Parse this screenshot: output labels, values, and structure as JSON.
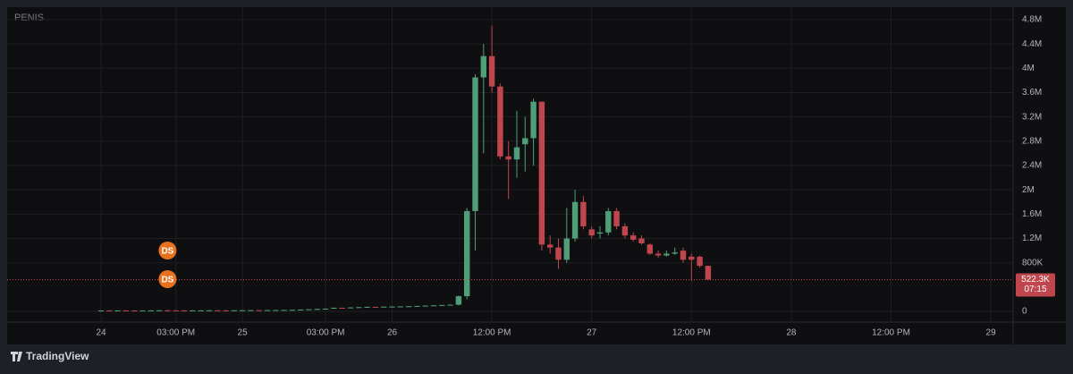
{
  "chart_data": {
    "type": "candlestick",
    "title": "PENIS",
    "categories": [
      "24",
      null,
      null,
      null,
      null,
      null,
      null,
      null,
      null,
      "03:00 PM",
      null,
      null,
      null,
      null,
      null,
      null,
      null,
      "25",
      null,
      null,
      null,
      null,
      null,
      null,
      null,
      null,
      null,
      "03:00 PM",
      null,
      null,
      null,
      null,
      null,
      null,
      null,
      "26",
      null,
      null,
      null,
      null,
      null,
      null,
      null,
      null,
      null,
      null,
      null,
      "12:00 PM",
      null,
      null,
      null,
      null,
      null,
      null,
      null,
      null,
      null,
      null,
      null,
      "27",
      null,
      null,
      null,
      null,
      null,
      null,
      null,
      null,
      null,
      null,
      null,
      "12:00 PM",
      null,
      null,
      null,
      null,
      null,
      null,
      null,
      null,
      null,
      null,
      null,
      "28",
      null,
      null,
      null,
      null,
      null,
      null,
      null,
      null,
      null,
      null,
      null,
      "12:00 PM",
      null,
      null,
      null,
      null,
      null,
      null,
      null,
      null,
      null,
      null,
      null,
      "29",
      null,
      null
    ],
    "open": [
      14000,
      15000,
      14000,
      16000,
      15000,
      13000,
      14000,
      16000,
      18000,
      17000,
      16000,
      15000,
      16000,
      17000,
      18000,
      17000,
      16000,
      18000,
      19000,
      20000,
      19000,
      21000,
      22000,
      24000,
      26000,
      30000,
      35000,
      40000,
      45000,
      60000,
      55000,
      65000,
      70000,
      75000,
      72000,
      78000,
      80000,
      82000,
      85000,
      90000,
      95000,
      100000,
      105000,
      110000,
      250000,
      1650000,
      3850000,
      4200000,
      3700000,
      2550000,
      2500000,
      2750000,
      2850000,
      3450000,
      1100000,
      1050000,
      850000,
      1200000,
      1800000,
      1350000,
      1280000,
      1300000,
      1650000,
      1400000,
      1250000,
      1200000,
      1100000,
      950000,
      920000,
      950000,
      1000000,
      900000,
      900000,
      750000,
      null,
      null,
      null,
      null,
      null,
      null,
      null,
      null,
      null,
      null,
      null,
      null,
      null,
      null,
      null,
      null,
      null,
      null,
      null,
      null,
      null,
      null,
      null,
      null,
      null,
      null,
      null,
      null,
      null,
      null,
      null,
      null,
      null,
      null,
      null,
      null
    ],
    "high": [
      18000,
      18000,
      19000,
      19000,
      18000,
      17000,
      19000,
      21000,
      21000,
      20000,
      19000,
      19000,
      20000,
      21000,
      21000,
      20000,
      21000,
      22000,
      23000,
      23000,
      24000,
      25000,
      27000,
      29000,
      33000,
      38000,
      43000,
      48000,
      63000,
      63000,
      68000,
      73000,
      78000,
      78000,
      81000,
      83000,
      85000,
      88000,
      93000,
      98000,
      103000,
      108000,
      113000,
      260000,
      1700000,
      3900000,
      4400000,
      4700000,
      3750000,
      2800000,
      3300000,
      3200000,
      3500000,
      3450000,
      1250000,
      1200000,
      1700000,
      2000000,
      1900000,
      1400000,
      1400000,
      1700000,
      1700000,
      1450000,
      1300000,
      1250000,
      1120000,
      1000000,
      1000000,
      1050000,
      1050000,
      950000,
      920000,
      750000,
      null,
      null,
      null,
      null,
      null,
      null,
      null,
      null,
      null,
      null,
      null,
      null,
      null,
      null,
      null,
      null,
      null,
      null,
      null,
      null,
      null,
      null,
      null,
      null,
      null,
      null,
      null,
      null,
      null,
      null,
      null,
      null,
      null,
      null,
      null,
      null
    ],
    "low": [
      11000,
      11000,
      11000,
      12000,
      10000,
      10000,
      11000,
      13000,
      14000,
      13000,
      12000,
      12000,
      13000,
      14000,
      14000,
      13000,
      13000,
      15000,
      16000,
      16000,
      16000,
      18000,
      19000,
      21000,
      23000,
      27000,
      32000,
      37000,
      42000,
      52000,
      52000,
      62000,
      67000,
      69000,
      69000,
      75000,
      77000,
      79000,
      82000,
      87000,
      92000,
      97000,
      102000,
      100000,
      200000,
      1000000,
      2600000,
      3600000,
      2500000,
      1850000,
      2200000,
      2300000,
      2400000,
      1000000,
      950000,
      700000,
      800000,
      1150000,
      1350000,
      1200000,
      1200000,
      1250000,
      1350000,
      1200000,
      1150000,
      1100000,
      930000,
      880000,
      900000,
      930000,
      800000,
      500000,
      720000,
      522300,
      null,
      null,
      null,
      null,
      null,
      null,
      null,
      null,
      null,
      null,
      null,
      null,
      null,
      null,
      null,
      null,
      null,
      null,
      null,
      null,
      null,
      null,
      null,
      null,
      null,
      null,
      null,
      null,
      null,
      null,
      null,
      null,
      null,
      null,
      null,
      null
    ],
    "close": [
      15000,
      14000,
      16000,
      15000,
      13000,
      14000,
      16000,
      18000,
      17000,
      16000,
      15000,
      16000,
      17000,
      18000,
      17000,
      16000,
      18000,
      19000,
      20000,
      19000,
      21000,
      22000,
      24000,
      26000,
      30000,
      35000,
      40000,
      45000,
      60000,
      55000,
      65000,
      70000,
      75000,
      72000,
      78000,
      80000,
      82000,
      85000,
      90000,
      95000,
      100000,
      105000,
      110000,
      250000,
      1650000,
      3850000,
      4200000,
      3700000,
      2550000,
      2500000,
      2700000,
      2850000,
      3450000,
      1100000,
      1050000,
      850000,
      1200000,
      1800000,
      1400000,
      1250000,
      1300000,
      1650000,
      1400000,
      1250000,
      1180000,
      1120000,
      950000,
      920000,
      950000,
      970000,
      850000,
      850000,
      750000,
      522300,
      null,
      null,
      null,
      null,
      null,
      null,
      null,
      null,
      null,
      null,
      null,
      null,
      null,
      null,
      null,
      null,
      null,
      null,
      null,
      null,
      null,
      null,
      null,
      null,
      null,
      null,
      null,
      null,
      null,
      null,
      null,
      null,
      null,
      null,
      null,
      null
    ],
    "up_color": "#4f9e78",
    "down_color": "#c0464e",
    "ylim": [
      -176000,
      4976000
    ],
    "yticks": [
      0,
      {
        "value": 800000,
        "label": "800K"
      },
      {
        "value": 1200000,
        "label": "1.2M"
      },
      {
        "value": 1600000,
        "label": "1.6M"
      },
      {
        "value": 2000000,
        "label": "2M"
      },
      {
        "value": 2400000,
        "label": "2.4M"
      },
      {
        "value": 2800000,
        "label": "2.8M"
      },
      {
        "value": 3200000,
        "label": "3.2M"
      },
      {
        "value": 3600000,
        "label": "3.6M"
      },
      {
        "value": 4000000,
        "label": "4M"
      },
      {
        "value": 4400000,
        "label": "4.4M"
      },
      {
        "value": 4800000,
        "label": "4.8M"
      }
    ],
    "grid": true,
    "last_price": {
      "value": 522300,
      "label": "522.3K"
    },
    "countdown": "07:15",
    "markers": [
      "DS",
      "DS"
    ],
    "brand": "TradingView"
  }
}
